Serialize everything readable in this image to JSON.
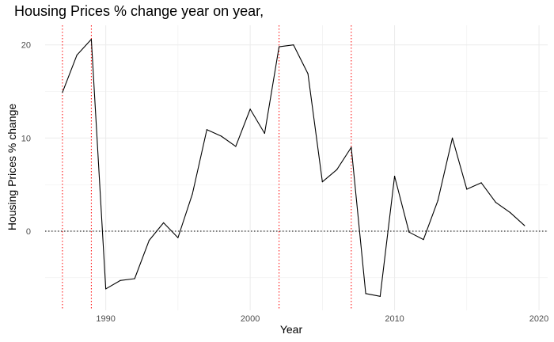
{
  "chart_data": {
    "type": "line",
    "title": "Housing Prices % change year on year,",
    "xlabel": "Year",
    "ylabel": "Housing Prices % change",
    "xlim": [
      1985.8,
      2020.6
    ],
    "ylim": [
      -8.5,
      22.1
    ],
    "x_ticks": [
      1990,
      2000,
      2010,
      2020
    ],
    "y_ticks": [
      0,
      10,
      20
    ],
    "grid": true,
    "series": [
      {
        "name": "Housing Prices % change",
        "color": "#000000",
        "x": [
          1987,
          1988,
          1989,
          1990,
          1991,
          1992,
          1993,
          1994,
          1995,
          1996,
          1997,
          1998,
          1999,
          2000,
          2001,
          2002,
          2003,
          2004,
          2005,
          2006,
          2007,
          2008,
          2009,
          2010,
          2011,
          2012,
          2013,
          2014,
          2015,
          2016,
          2017,
          2018,
          2019
        ],
        "values": [
          14.9,
          18.9,
          20.6,
          -6.2,
          -5.3,
          -5.1,
          -1.0,
          0.9,
          -0.7,
          4.0,
          10.9,
          10.2,
          9.1,
          13.1,
          10.5,
          19.8,
          20.0,
          16.9,
          5.3,
          6.6,
          9.0,
          -6.7,
          -7.0,
          5.9,
          -0.1,
          -0.9,
          3.3,
          10.0,
          4.5,
          5.2,
          3.1,
          2.0,
          0.6
        ]
      }
    ],
    "reference_lines": [
      {
        "orientation": "horizontal",
        "value": 0,
        "color": "#000000",
        "style": "dotted"
      },
      {
        "orientation": "vertical",
        "value": 1987,
        "color": "#ff0000",
        "style": "dotted"
      },
      {
        "orientation": "vertical",
        "value": 1989,
        "color": "#ff0000",
        "style": "dotted"
      },
      {
        "orientation": "vertical",
        "value": 2002,
        "color": "#ff0000",
        "style": "dotted"
      },
      {
        "orientation": "vertical",
        "value": 2007,
        "color": "#ff0000",
        "style": "dotted"
      }
    ],
    "colors": {
      "gridline": "#ebebeb",
      "tick_text": "#4d4d4d",
      "line": "#000000",
      "reference_red": "#ff0000"
    }
  }
}
